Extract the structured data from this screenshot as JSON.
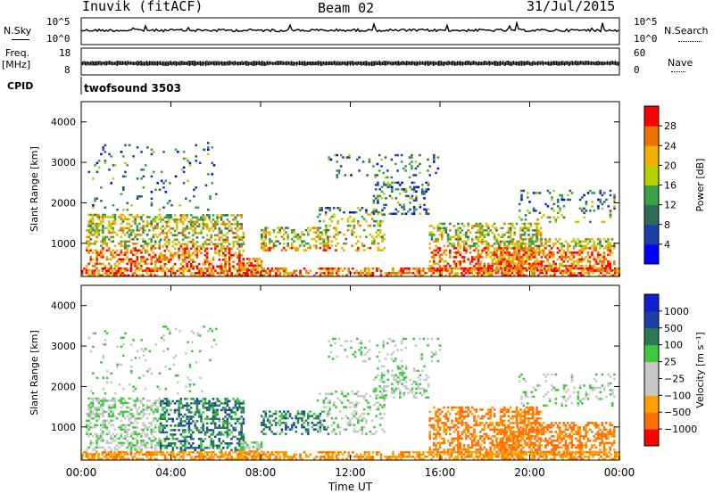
{
  "header": {
    "station": "Inuvik (fitACF)",
    "beam": "Beam 02",
    "date": "31/Jul/2015"
  },
  "strip_nsky": {
    "left_label": "N.Sky",
    "ticks": [
      "10^5",
      "10^0"
    ],
    "right_label": "N.Search"
  },
  "strip_freq": {
    "left_label": "Freq.",
    "unit_label": "[MHz]",
    "ticks": [
      "18",
      "8"
    ],
    "right_ticks": [
      "60",
      "0"
    ],
    "right_label": "Nave"
  },
  "cpid": {
    "label": "CPID",
    "value": "twofsound 3503"
  },
  "colors": {
    "power": [
      "#0000ff",
      "#1f3fa8",
      "#2f6b5a",
      "#3aa04a",
      "#b8d000",
      "#f0b000",
      "#f07000",
      "#ff0000"
    ],
    "velocity": [
      "#ff0000",
      "#ff7000",
      "#ffa000",
      "#c8c8c8",
      "#c8c8c8",
      "#40c840",
      "#2a7a55",
      "#1f3fa8",
      "#1020d0"
    ]
  },
  "chart_data": [
    {
      "type": "heatmap",
      "title": "",
      "xlabel": "",
      "ylabel": "Slant Range [km]",
      "x_tick_labels": [
        "00:00",
        "04:00",
        "08:00",
        "12:00",
        "16:00",
        "20:00",
        "00:00"
      ],
      "y_tick_labels": [
        "1000",
        "2000",
        "3000",
        "4000"
      ],
      "ylim": [
        180,
        4500
      ],
      "xlim_hours": [
        0,
        24
      ],
      "colorbar": {
        "label": "Power [dB]",
        "tick_labels": [
          "4",
          "8",
          "12",
          "16",
          "20",
          "24",
          "28"
        ],
        "range": [
          0,
          32
        ]
      }
    },
    {
      "type": "heatmap",
      "title": "",
      "xlabel": "Time UT",
      "ylabel": "Slant Range [km]",
      "x_tick_labels": [
        "00:00",
        "04:00",
        "08:00",
        "12:00",
        "16:00",
        "20:00",
        "00:00"
      ],
      "y_tick_labels": [
        "1000",
        "2000",
        "3000",
        "4000"
      ],
      "ylim": [
        180,
        4500
      ],
      "xlim_hours": [
        0,
        24
      ],
      "colorbar": {
        "label": "Velocity [m s⁻¹]",
        "tick_labels": [
          "1000",
          "500",
          "100",
          "25",
          "−25",
          "−100",
          "−500",
          "−1000"
        ],
        "range": [
          -1000,
          1000
        ]
      }
    }
  ]
}
